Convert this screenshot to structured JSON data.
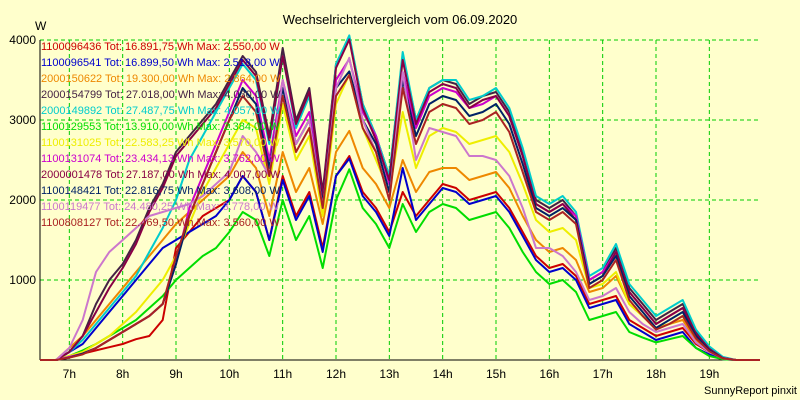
{
  "chart_data": {
    "type": "line",
    "title": "Wechselrichtervergleich vom 06.09.2020",
    "ylabel": "W",
    "credit": "SunnyReport pinxit",
    "ylim": [
      0,
      4000
    ],
    "xlim": [
      6.45,
      19.95
    ],
    "y_ticks": [
      1000,
      2000,
      3000,
      4000
    ],
    "y_tick_labels": [
      "1000",
      "2000",
      "3000",
      "4000"
    ],
    "x_ticks": [
      7,
      8,
      9,
      10,
      11,
      12,
      13,
      14,
      15,
      16,
      17,
      18,
      19
    ],
    "x_tick_labels": [
      "7h",
      "8h",
      "9h",
      "10h",
      "11h",
      "12h",
      "13h",
      "14h",
      "15h",
      "16h",
      "17h",
      "18h",
      "19h"
    ],
    "grid": true,
    "legend_position": "top-left",
    "x": [
      6.45,
      6.75,
      7.0,
      7.25,
      7.5,
      7.75,
      8.0,
      8.25,
      8.5,
      8.75,
      9.0,
      9.25,
      9.5,
      9.75,
      10.0,
      10.25,
      10.5,
      10.75,
      11.0,
      11.25,
      11.5,
      11.75,
      12.0,
      12.25,
      12.5,
      12.75,
      13.0,
      13.25,
      13.5,
      13.75,
      14.0,
      14.25,
      14.5,
      14.75,
      15.0,
      15.25,
      15.5,
      15.75,
      16.0,
      16.25,
      16.5,
      16.75,
      17.0,
      17.25,
      17.5,
      17.75,
      18.0,
      18.25,
      18.5,
      18.75,
      19.0,
      19.25,
      19.5,
      19.95
    ],
    "series": [
      {
        "name": "1100096436",
        "legend": "1100096436 Tot: 16.891,75 Wh Max: 2.550,00 W",
        "color": "#cc0000",
        "values": [
          0,
          0,
          40,
          80,
          120,
          160,
          200,
          260,
          300,
          500,
          1400,
          1600,
          1800,
          1900,
          2000,
          2300,
          2100,
          1500,
          2300,
          1800,
          2100,
          1400,
          2300,
          2550,
          2100,
          1900,
          1600,
          2100,
          1800,
          2000,
          2200,
          2150,
          2000,
          2050,
          2100,
          1900,
          1600,
          1300,
          1150,
          1200,
          1050,
          700,
          750,
          800,
          500,
          400,
          300,
          350,
          400,
          200,
          100,
          20,
          0,
          0
        ]
      },
      {
        "name": "1100096541",
        "legend": "1100096541 Tot: 16.899,50 Wh Max: 2.518,00 W",
        "color": "#0000cc",
        "values": [
          0,
          0,
          100,
          200,
          400,
          600,
          800,
          1000,
          1200,
          1400,
          1500,
          1600,
          1700,
          1800,
          2000,
          2300,
          2100,
          1500,
          2250,
          1750,
          2050,
          1350,
          2300,
          2518,
          2050,
          1850,
          1550,
          2400,
          1750,
          1950,
          2150,
          2100,
          1950,
          2000,
          2050,
          1850,
          1550,
          1250,
          1100,
          1150,
          1000,
          650,
          700,
          750,
          450,
          350,
          250,
          300,
          350,
          150,
          70,
          10,
          0,
          0
        ]
      },
      {
        "name": "2000150622",
        "legend": "2000150622 Tot: 19.300,00 Wh Max: 2.864,00 W",
        "color": "#ee8800",
        "values": [
          0,
          0,
          150,
          300,
          500,
          700,
          900,
          1100,
          1300,
          1500,
          1700,
          1850,
          2000,
          2150,
          2300,
          2600,
          2400,
          1800,
          2600,
          2100,
          2400,
          1700,
          2600,
          2864,
          2400,
          2200,
          1900,
          2500,
          2100,
          2350,
          2400,
          2400,
          2250,
          2300,
          2350,
          2150,
          1800,
          1500,
          1350,
          1400,
          1250,
          850,
          900,
          1050,
          700,
          550,
          400,
          450,
          500,
          250,
          120,
          20,
          0,
          0
        ]
      },
      {
        "name": "2000154799",
        "legend": "2000154799 Tot: 27.018,00 Wh Max: 4.030,00 W",
        "color": "#442244",
        "values": [
          0,
          0,
          100,
          300,
          700,
          1000,
          1200,
          1500,
          1900,
          2200,
          2600,
          2800,
          3000,
          3200,
          3500,
          3800,
          3600,
          2800,
          3900,
          3000,
          3400,
          2100,
          3700,
          4030,
          3200,
          2800,
          2300,
          3800,
          3000,
          3400,
          3500,
          3450,
          3200,
          3300,
          3350,
          3100,
          2600,
          2000,
          1900,
          2000,
          1800,
          1000,
          1100,
          1400,
          900,
          700,
          500,
          600,
          700,
          350,
          150,
          30,
          0,
          0
        ]
      },
      {
        "name": "2000149892",
        "legend": "2000149892 Tot: 27.487,75 Wh Max: 4.057,00 W",
        "color": "#00cccc",
        "values": [
          0,
          0,
          100,
          250,
          450,
          650,
          850,
          1050,
          1350,
          1650,
          2000,
          2500,
          2800,
          3100,
          3400,
          3700,
          3500,
          2700,
          3800,
          2900,
          3300,
          2000,
          3700,
          4057,
          3200,
          2800,
          2300,
          3850,
          3000,
          3400,
          3500,
          3500,
          3250,
          3300,
          3400,
          3150,
          2650,
          2050,
          1950,
          2050,
          1850,
          1050,
          1150,
          1450,
          950,
          750,
          550,
          650,
          750,
          380,
          170,
          40,
          0,
          0
        ]
      },
      {
        "name": "1100129553",
        "legend": "1100129553 Tot: 13.910,00 Wh Max: 2.384,00 W",
        "color": "#00dd00",
        "values": [
          0,
          0,
          50,
          120,
          200,
          300,
          400,
          500,
          650,
          800,
          1000,
          1150,
          1300,
          1400,
          1600,
          1850,
          1750,
          1300,
          2000,
          1500,
          1800,
          1150,
          2000,
          2384,
          1900,
          1700,
          1400,
          1950,
          1600,
          1850,
          1950,
          1900,
          1750,
          1800,
          1850,
          1650,
          1350,
          1100,
          950,
          1000,
          850,
          500,
          550,
          600,
          350,
          280,
          220,
          260,
          300,
          150,
          50,
          10,
          0,
          0
        ]
      },
      {
        "name": "1100131025",
        "legend": "1100131025 Tot: 22.583,25 Wh Max: 3.570,00 W",
        "color": "#eeee00",
        "values": [
          0,
          0,
          50,
          100,
          200,
          300,
          450,
          600,
          800,
          1000,
          1300,
          1700,
          2100,
          2400,
          2700,
          3000,
          2900,
          2200,
          3200,
          2500,
          2800,
          1800,
          3200,
          3570,
          2900,
          2500,
          2100,
          3100,
          2400,
          2800,
          2900,
          2850,
          2700,
          2750,
          2800,
          2600,
          2200,
          1750,
          1600,
          1650,
          1500,
          900,
          950,
          1100,
          700,
          550,
          400,
          450,
          550,
          280,
          120,
          20,
          0,
          0
        ]
      },
      {
        "name": "1100131074",
        "legend": "1100131074 Tot: 23.434,13 Wh Max: 3.762,00 W",
        "color": "#cc00cc",
        "values": [
          0,
          0,
          40,
          80,
          150,
          250,
          350,
          450,
          550,
          700,
          1200,
          1900,
          2300,
          2700,
          3100,
          3500,
          3300,
          2500,
          3500,
          2800,
          3100,
          2000,
          3500,
          3762,
          3100,
          2800,
          2200,
          3600,
          2900,
          3300,
          3400,
          3350,
          3150,
          3200,
          3300,
          3050,
          2550,
          1950,
          1850,
          1950,
          1800,
          1000,
          1100,
          1350,
          850,
          650,
          450,
          550,
          650,
          320,
          130,
          25,
          0,
          0
        ]
      },
      {
        "name": "2000001478",
        "legend": "2000001478 Tot: 27.187,00 Wh Max: 4.007,00 W",
        "color": "#880044",
        "values": [
          0,
          0,
          100,
          300,
          600,
          900,
          1150,
          1450,
          1850,
          2150,
          2550,
          2750,
          2950,
          3150,
          3450,
          3750,
          3550,
          2750,
          3800,
          2950,
          3350,
          2050,
          3650,
          4007,
          3150,
          2750,
          2250,
          3750,
          2950,
          3350,
          3450,
          3400,
          3150,
          3250,
          3300,
          3050,
          2550,
          1950,
          1850,
          1950,
          1750,
          950,
          1050,
          1350,
          850,
          650,
          450,
          550,
          650,
          330,
          140,
          25,
          0,
          0
        ]
      },
      {
        "name": "1100148421",
        "legend": "1100148421 Tot: 22.816,75 Wh Max: 3.608,00 W",
        "color": "#002266",
        "values": [
          0,
          0,
          30,
          80,
          150,
          250,
          350,
          450,
          550,
          700,
          1200,
          1800,
          2200,
          2600,
          3000,
          3400,
          3200,
          2400,
          3400,
          2700,
          3000,
          1950,
          3400,
          3608,
          3000,
          2700,
          2100,
          3500,
          2800,
          3200,
          3300,
          3250,
          3050,
          3100,
          3200,
          2950,
          2450,
          1900,
          1800,
          1900,
          1750,
          950,
          1050,
          1300,
          800,
          600,
          400,
          500,
          600,
          300,
          120,
          20,
          0,
          0
        ]
      },
      {
        "name": "1100119477",
        "legend": "1100119477 Tot: 24.480,25 Wh Max: 3.778,00 W",
        "color": "#cc77cc",
        "values": [
          0,
          0,
          150,
          500,
          1100,
          1350,
          1500,
          1650,
          1800,
          1850,
          1900,
          1950,
          2050,
          2200,
          2350,
          2800,
          2600,
          2300,
          3500,
          2700,
          3000,
          1900,
          3400,
          3778,
          3000,
          2600,
          2000,
          3600,
          2500,
          2900,
          2850,
          2800,
          2550,
          2550,
          2500,
          2300,
          1900,
          1400,
          1400,
          1300,
          1100,
          750,
          800,
          900,
          600,
          450,
          350,
          400,
          450,
          220,
          100,
          20,
          0,
          0
        ]
      },
      {
        "name": "1100808127",
        "legend": "1100808127 Tot: 22.469,50 Wh Max: 3.560,00 W",
        "color": "#aa2222",
        "values": [
          0,
          0,
          30,
          70,
          150,
          250,
          350,
          450,
          550,
          700,
          1300,
          1800,
          2200,
          2600,
          3000,
          3300,
          3100,
          2300,
          3300,
          2600,
          2900,
          1900,
          3300,
          3560,
          2900,
          2600,
          2000,
          3400,
          2700,
          3100,
          3200,
          3150,
          2950,
          3000,
          3100,
          2850,
          2350,
          1850,
          1750,
          1850,
          1700,
          900,
          1000,
          1250,
          750,
          550,
          380,
          450,
          550,
          270,
          110,
          20,
          0,
          0
        ]
      }
    ]
  }
}
